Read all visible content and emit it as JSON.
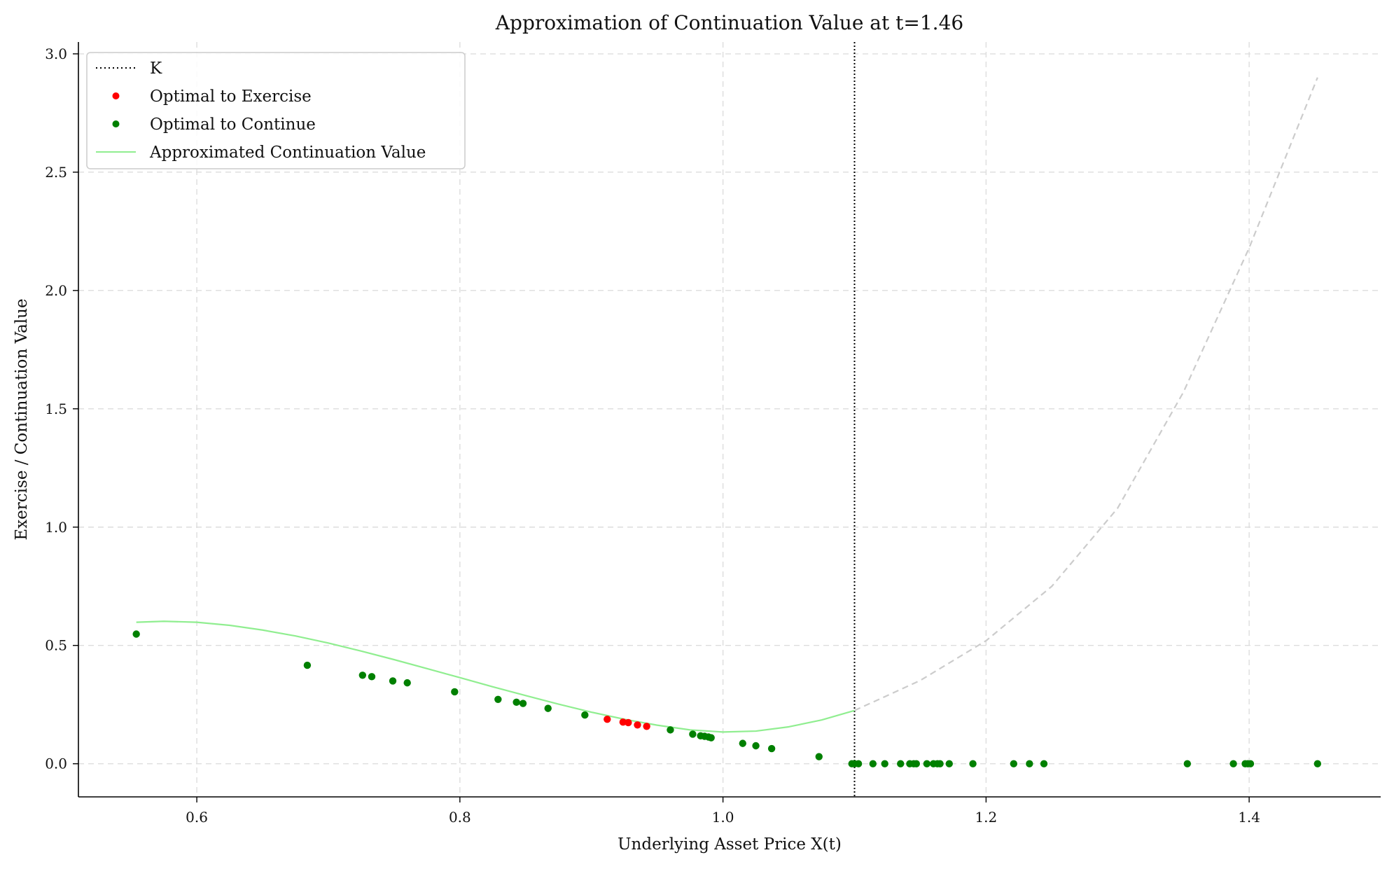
{
  "chart_data": {
    "type": "scatter",
    "title": "Approximation of Continuation Value at t=1.46",
    "xlabel": "Underlying Asset Price X(t)",
    "ylabel": "Exercise / Continuation Value",
    "xlim": [
      0.51,
      1.5
    ],
    "ylim": [
      -0.14,
      3.05
    ],
    "x_ticks": [
      0.6,
      0.8,
      1.0,
      1.2,
      1.4
    ],
    "x_tick_labels": [
      "0.6",
      "0.8",
      "1.0",
      "1.2",
      "1.4"
    ],
    "y_ticks": [
      0.0,
      0.5,
      1.0,
      1.5,
      2.0,
      2.5,
      3.0
    ],
    "y_tick_labels": [
      "0.0",
      "0.5",
      "1.0",
      "1.5",
      "2.0",
      "2.5",
      "3.0"
    ],
    "grid": true,
    "legend_position": "top-left",
    "strike": {
      "name": "K",
      "x": 1.1,
      "color": "#000000"
    },
    "series": [
      {
        "name": "Optimal to Exercise",
        "kind": "scatter",
        "color": "#ff0000",
        "points": [
          [
            0.912,
            0.188
          ],
          [
            0.924,
            0.176
          ],
          [
            0.928,
            0.174
          ],
          [
            0.935,
            0.164
          ],
          [
            0.942,
            0.158
          ]
        ]
      },
      {
        "name": "Optimal to Continue",
        "kind": "scatter",
        "color": "#008000",
        "points": [
          [
            0.554,
            0.548
          ],
          [
            0.684,
            0.416
          ],
          [
            0.726,
            0.374
          ],
          [
            0.733,
            0.368
          ],
          [
            0.749,
            0.35
          ],
          [
            0.76,
            0.342
          ],
          [
            0.796,
            0.304
          ],
          [
            0.829,
            0.272
          ],
          [
            0.843,
            0.26
          ],
          [
            0.848,
            0.255
          ],
          [
            0.867,
            0.234
          ],
          [
            0.895,
            0.206
          ],
          [
            0.96,
            0.143
          ],
          [
            0.977,
            0.125
          ],
          [
            0.983,
            0.118
          ],
          [
            0.986,
            0.116
          ],
          [
            0.989,
            0.113
          ],
          [
            0.991,
            0.11
          ],
          [
            1.015,
            0.086
          ],
          [
            1.025,
            0.076
          ],
          [
            1.037,
            0.064
          ],
          [
            1.073,
            0.03
          ],
          [
            1.098,
            0.0
          ],
          [
            1.1,
            0.0
          ],
          [
            1.103,
            0.0
          ],
          [
            1.114,
            0.0
          ],
          [
            1.123,
            0.0
          ],
          [
            1.135,
            0.0
          ],
          [
            1.142,
            0.0
          ],
          [
            1.145,
            0.0
          ],
          [
            1.147,
            0.0
          ],
          [
            1.155,
            0.0
          ],
          [
            1.16,
            0.0
          ],
          [
            1.163,
            0.0
          ],
          [
            1.165,
            0.0
          ],
          [
            1.172,
            0.0
          ],
          [
            1.19,
            0.0
          ],
          [
            1.221,
            0.0
          ],
          [
            1.233,
            0.0
          ],
          [
            1.244,
            0.0
          ],
          [
            1.353,
            0.0
          ],
          [
            1.388,
            0.0
          ],
          [
            1.397,
            0.0
          ],
          [
            1.399,
            0.0
          ],
          [
            1.401,
            0.0
          ],
          [
            1.452,
            0.0
          ]
        ]
      },
      {
        "name": "Approximated Continuation Value",
        "kind": "line",
        "color": "#90ee90",
        "x": [
          0.554,
          0.575,
          0.6,
          0.625,
          0.65,
          0.675,
          0.7,
          0.725,
          0.75,
          0.775,
          0.8,
          0.825,
          0.85,
          0.875,
          0.9,
          0.925,
          0.95,
          0.975,
          1.0,
          1.025,
          1.05,
          1.075,
          1.1
        ],
        "y": [
          0.598,
          0.602,
          0.598,
          0.585,
          0.565,
          0.54,
          0.51,
          0.476,
          0.44,
          0.402,
          0.364,
          0.325,
          0.288,
          0.252,
          0.218,
          0.188,
          0.163,
          0.143,
          0.134,
          0.138,
          0.156,
          0.185,
          0.225
        ]
      },
      {
        "kind": "dashed-extension",
        "color": "#cccccc",
        "x": [
          1.1,
          1.15,
          1.2,
          1.25,
          1.3,
          1.35,
          1.4,
          1.452
        ],
        "y": [
          0.225,
          0.352,
          0.52,
          0.75,
          1.08,
          1.57,
          2.18,
          2.9
        ]
      }
    ]
  }
}
